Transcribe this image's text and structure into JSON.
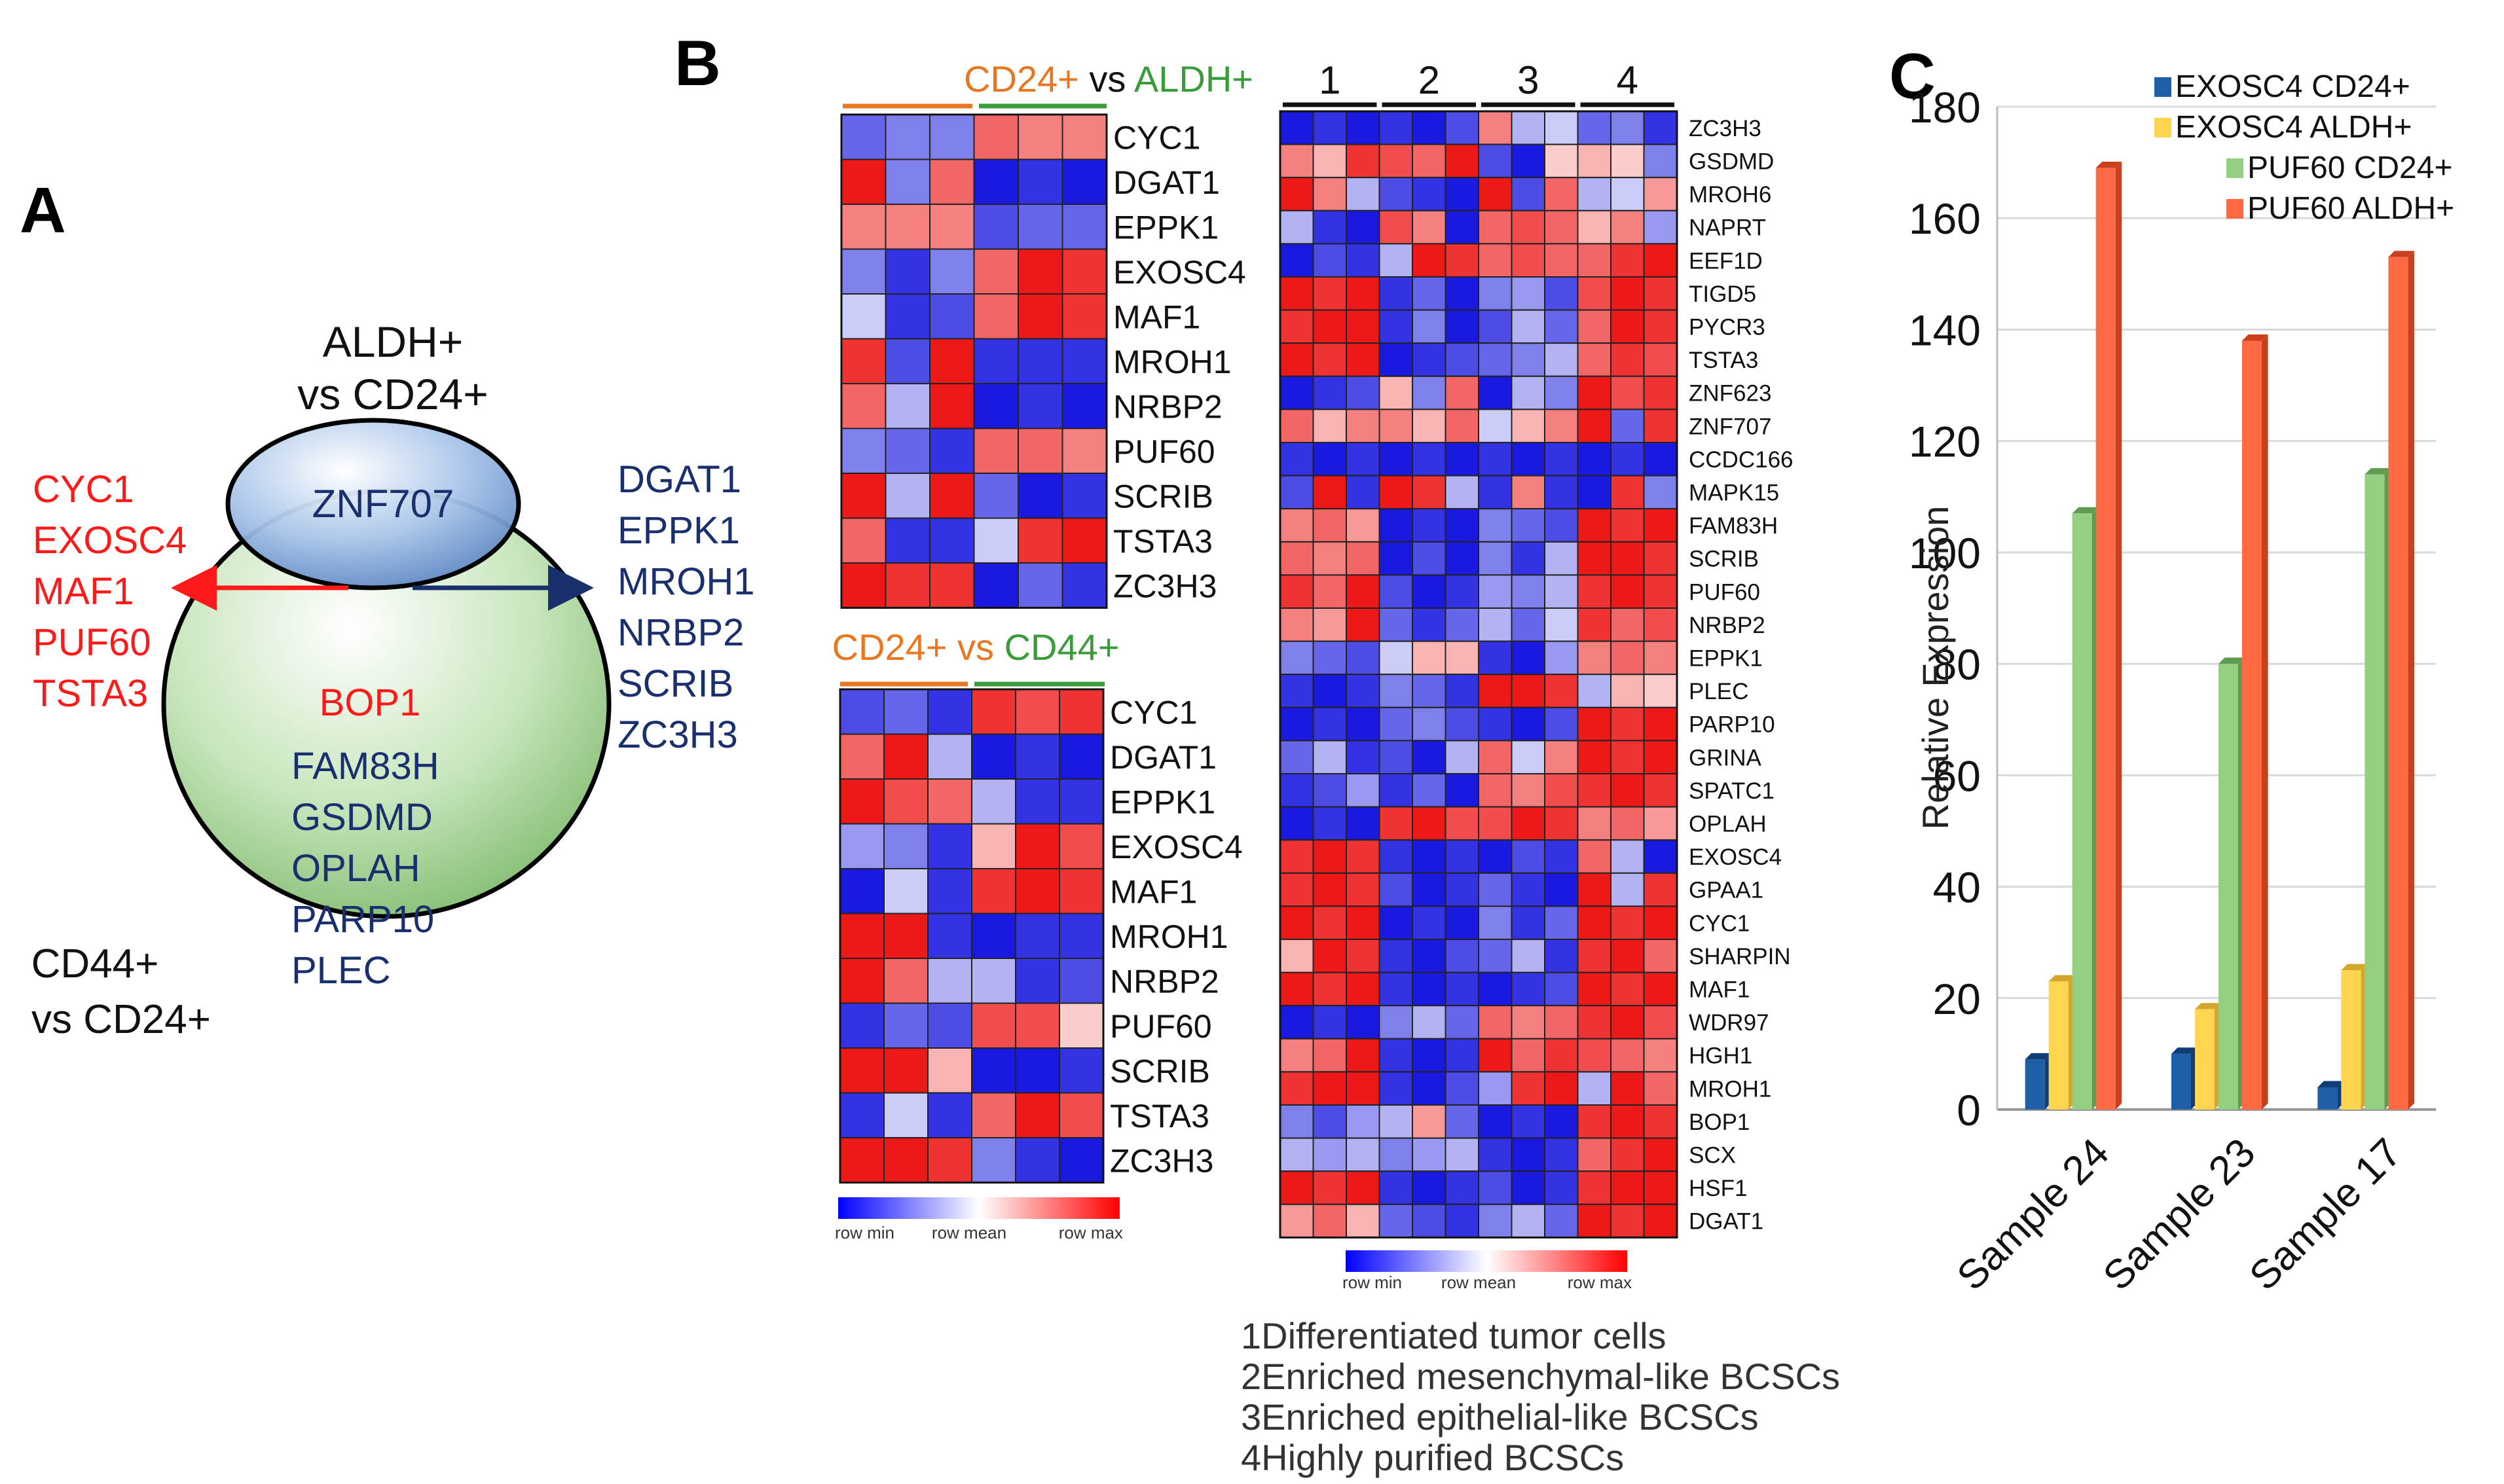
{
  "panel_labels": {
    "a": "A",
    "b": "B",
    "c": "C"
  },
  "panel_a": {
    "top_label_line1": "ALDH+",
    "top_label_line2": "vs CD24+",
    "bottom_label_line1": "CD44+",
    "bottom_label_line2": "vs CD24+",
    "top_ellipse_gene": "ZNF707",
    "overlap_gene": "BOP1",
    "bottom_ellipse_genes": [
      "FAM83H",
      "GSDMD",
      "OPLAH",
      "PARP10",
      "PLEC"
    ],
    "left_arrow_genes": [
      "CYC1",
      "EXOSC4",
      "MAF1",
      "PUF60",
      "TSTA3"
    ],
    "right_arrow_genes": [
      "DGAT1",
      "EPPK1",
      "MROH1",
      "NRBP2",
      "SCRIB",
      "ZC3H3"
    ],
    "colors": {
      "up": "#ff1a1a",
      "down": "#1a2f6e",
      "top_ellipse": "#8fb3e0",
      "bottom_ellipse": "#b8dba8"
    }
  },
  "heatmap1": {
    "title_a": "CD24+",
    "title_vs": " vs ",
    "title_b": "ALDH+",
    "title_a_color": "#e87722",
    "title_b_color": "#3a9b3a",
    "genes": [
      "CYC1",
      "DGAT1",
      "EPPK1",
      "EXOSC4",
      "MAF1",
      "MROH1",
      "NRBP2",
      "PUF60",
      "SCRIB",
      "TSTA3",
      "ZC3H3"
    ],
    "values": [
      [
        -0.6,
        -0.5,
        -0.5,
        0.6,
        0.5,
        0.5
      ],
      [
        0.9,
        -0.5,
        0.6,
        -0.9,
        -0.8,
        -0.9
      ],
      [
        0.5,
        0.5,
        0.5,
        -0.7,
        -0.6,
        -0.6
      ],
      [
        -0.5,
        -0.8,
        -0.5,
        0.6,
        0.9,
        0.8
      ],
      [
        -0.2,
        -0.8,
        -0.7,
        0.6,
        0.9,
        0.8
      ],
      [
        0.8,
        -0.7,
        0.9,
        -0.8,
        -0.8,
        -0.8
      ],
      [
        0.6,
        -0.3,
        0.9,
        -0.9,
        -0.8,
        -0.9
      ],
      [
        -0.5,
        -0.6,
        -0.8,
        0.6,
        0.6,
        0.5
      ],
      [
        0.9,
        -0.3,
        0.9,
        -0.6,
        -0.9,
        -0.8
      ],
      [
        0.6,
        -0.8,
        -0.8,
        -0.2,
        0.8,
        0.9
      ],
      [
        0.9,
        0.8,
        0.8,
        -0.9,
        -0.6,
        -0.8
      ]
    ],
    "legend": {
      "min": "row min",
      "mean": "row mean",
      "max": "row max"
    }
  },
  "heatmap2": {
    "title_a": "CD24+",
    "title_vs": " vs ",
    "title_b": "CD44+",
    "title_a_color": "#e87722",
    "title_b_color": "#3a9b3a",
    "genes": [
      "CYC1",
      "DGAT1",
      "EPPK1",
      "EXOSC4",
      "MAF1",
      "MROH1",
      "NRBP2",
      "PUF60",
      "SCRIB",
      "TSTA3",
      "ZC3H3"
    ],
    "values": [
      [
        -0.7,
        -0.6,
        -0.8,
        0.8,
        0.7,
        0.8
      ],
      [
        0.6,
        0.9,
        -0.3,
        -0.9,
        -0.8,
        -0.9
      ],
      [
        0.9,
        0.7,
        0.6,
        -0.3,
        -0.8,
        -0.8
      ],
      [
        -0.4,
        -0.5,
        -0.8,
        0.3,
        0.9,
        0.7
      ],
      [
        -0.9,
        -0.2,
        -0.8,
        0.8,
        0.9,
        0.8
      ],
      [
        0.9,
        0.9,
        -0.8,
        -0.9,
        -0.8,
        -0.8
      ],
      [
        0.9,
        0.6,
        -0.3,
        -0.3,
        -0.8,
        -0.7
      ],
      [
        -0.8,
        -0.6,
        -0.7,
        0.7,
        0.7,
        0.2
      ],
      [
        0.9,
        0.9,
        0.3,
        -0.9,
        -0.9,
        -0.8
      ],
      [
        -0.8,
        -0.2,
        -0.8,
        0.6,
        0.9,
        0.7
      ],
      [
        0.9,
        0.9,
        0.8,
        -0.5,
        -0.8,
        -0.9
      ]
    ],
    "legend": {
      "min": "row min",
      "mean": "row mean",
      "max": "row max"
    }
  },
  "heatmap3": {
    "group_labels": [
      "1",
      "2",
      "3",
      "4"
    ],
    "genes": [
      "ZC3H3",
      "GSDMD",
      "MROH6",
      "NAPRT",
      "EEF1D",
      "TIGD5",
      "PYCR3",
      "TSTA3",
      "ZNF623",
      "ZNF707",
      "CCDC166",
      "MAPK15",
      "FAM83H",
      "SCRIB",
      "PUF60",
      "NRBP2",
      "EPPK1",
      "PLEC",
      "PARP10",
      "GRINA",
      "SPATC1",
      "OPLAH",
      "EXOSC4",
      "GPAA1",
      "CYC1",
      "SHARPIN",
      "MAF1",
      "WDR97",
      "HGH1",
      "MROH1",
      "BOP1",
      "SCX",
      "HSF1",
      "DGAT1"
    ],
    "values": [
      [
        -0.9,
        -0.8,
        -0.9,
        -0.8,
        -0.9,
        -0.7,
        0.5,
        -0.3,
        -0.2,
        -0.6,
        -0.5,
        -0.8
      ],
      [
        0.5,
        0.3,
        0.8,
        0.7,
        0.6,
        0.9,
        -0.7,
        -0.9,
        0.2,
        0.3,
        0.2,
        -0.5
      ],
      [
        0.9,
        0.5,
        -0.3,
        -0.7,
        -0.8,
        -0.9,
        0.9,
        -0.7,
        0.6,
        -0.3,
        -0.2,
        0.4
      ],
      [
        -0.3,
        -0.8,
        -0.9,
        0.7,
        0.5,
        -0.9,
        0.6,
        0.7,
        0.6,
        0.3,
        0.5,
        -0.4
      ],
      [
        -0.9,
        -0.7,
        -0.8,
        -0.3,
        0.9,
        0.8,
        0.6,
        0.7,
        0.6,
        0.6,
        0.8,
        0.9
      ],
      [
        0.9,
        0.8,
        0.9,
        -0.8,
        -0.6,
        -0.9,
        -0.5,
        -0.4,
        -0.7,
        0.7,
        0.9,
        0.8
      ],
      [
        0.8,
        0.9,
        0.9,
        -0.8,
        -0.5,
        -0.9,
        -0.7,
        -0.3,
        -0.6,
        0.6,
        0.9,
        0.8
      ],
      [
        0.9,
        0.8,
        0.9,
        -0.9,
        -0.8,
        -0.7,
        -0.6,
        -0.5,
        -0.3,
        0.6,
        0.8,
        0.7
      ],
      [
        -0.9,
        -0.8,
        -0.7,
        0.3,
        -0.5,
        0.6,
        -0.9,
        -0.3,
        -0.5,
        0.9,
        0.7,
        0.8
      ],
      [
        0.6,
        0.3,
        0.5,
        0.5,
        0.3,
        0.6,
        -0.2,
        0.3,
        0.5,
        0.9,
        -0.6,
        0.8
      ],
      [
        -0.8,
        -0.9,
        -0.8,
        -0.9,
        -0.8,
        -0.9,
        -0.8,
        -0.9,
        -0.8,
        -0.9,
        -0.8,
        -0.9
      ],
      [
        -0.7,
        0.9,
        -0.8,
        0.9,
        0.8,
        -0.3,
        -0.8,
        0.5,
        -0.8,
        -0.9,
        0.8,
        -0.5
      ],
      [
        0.5,
        0.6,
        0.4,
        -0.9,
        -0.8,
        -0.9,
        -0.5,
        -0.6,
        -0.7,
        0.9,
        0.8,
        0.9
      ],
      [
        0.6,
        0.5,
        0.6,
        -0.9,
        -0.7,
        -0.9,
        -0.5,
        -0.8,
        -0.3,
        0.9,
        0.9,
        0.8
      ],
      [
        0.8,
        0.6,
        0.9,
        -0.7,
        -0.9,
        -0.8,
        -0.4,
        -0.5,
        -0.3,
        0.8,
        0.9,
        0.8
      ],
      [
        0.5,
        0.4,
        0.9,
        -0.6,
        -0.8,
        -0.6,
        -0.3,
        -0.6,
        -0.2,
        0.8,
        0.6,
        0.7
      ],
      [
        -0.5,
        -0.6,
        -0.7,
        -0.2,
        0.3,
        0.3,
        -0.8,
        -0.9,
        -0.4,
        0.5,
        0.6,
        0.5
      ],
      [
        -0.8,
        -0.9,
        -0.8,
        -0.5,
        -0.6,
        -0.8,
        0.9,
        0.9,
        0.8,
        -0.3,
        0.3,
        0.2
      ],
      [
        -0.9,
        -0.8,
        -0.9,
        -0.6,
        -0.5,
        -0.7,
        -0.8,
        -0.9,
        -0.7,
        0.9,
        0.8,
        0.9
      ],
      [
        -0.6,
        -0.3,
        -0.8,
        -0.7,
        -0.9,
        -0.3,
        0.6,
        -0.2,
        0.5,
        0.9,
        0.8,
        0.9
      ],
      [
        -0.8,
        -0.7,
        -0.4,
        -0.8,
        -0.6,
        -0.9,
        0.6,
        0.5,
        0.7,
        0.8,
        0.9,
        0.8
      ],
      [
        -0.9,
        -0.8,
        -0.9,
        0.8,
        0.9,
        0.7,
        0.7,
        0.9,
        0.8,
        0.5,
        0.6,
        0.4
      ],
      [
        0.8,
        0.9,
        0.8,
        -0.8,
        -0.9,
        -0.8,
        -0.9,
        -0.7,
        -0.8,
        0.6,
        -0.3,
        -0.9
      ],
      [
        0.8,
        0.9,
        0.8,
        -0.7,
        -0.9,
        -0.8,
        -0.6,
        -0.8,
        -0.9,
        0.9,
        -0.3,
        0.8
      ],
      [
        0.9,
        0.8,
        0.9,
        -0.9,
        -0.8,
        -0.9,
        -0.5,
        -0.8,
        -0.6,
        0.9,
        0.8,
        0.9
      ],
      [
        0.3,
        0.9,
        0.8,
        -0.8,
        -0.9,
        -0.7,
        -0.6,
        -0.3,
        -0.8,
        0.8,
        0.9,
        0.6
      ],
      [
        0.9,
        0.8,
        0.9,
        -0.8,
        -0.9,
        -0.8,
        -0.9,
        -0.8,
        -0.7,
        0.9,
        0.8,
        0.9
      ],
      [
        -0.9,
        -0.8,
        -0.9,
        -0.5,
        -0.3,
        -0.6,
        0.6,
        0.5,
        0.6,
        0.8,
        0.9,
        0.7
      ],
      [
        0.5,
        0.6,
        0.9,
        -0.8,
        -0.9,
        -0.8,
        0.9,
        0.6,
        0.8,
        0.7,
        0.6,
        0.5
      ],
      [
        0.8,
        0.9,
        0.9,
        -0.8,
        -0.9,
        -0.7,
        -0.4,
        0.8,
        0.9,
        -0.3,
        0.9,
        0.6
      ],
      [
        -0.5,
        -0.7,
        -0.4,
        -0.3,
        0.4,
        -0.6,
        -0.9,
        -0.8,
        -0.9,
        0.8,
        0.9,
        0.8
      ],
      [
        -0.3,
        -0.4,
        -0.3,
        -0.5,
        -0.4,
        -0.3,
        -0.8,
        -0.9,
        -0.8,
        0.6,
        0.8,
        0.9
      ],
      [
        0.9,
        0.8,
        0.9,
        -0.8,
        -0.9,
        -0.8,
        -0.7,
        -0.9,
        -0.8,
        0.8,
        0.9,
        0.9
      ],
      [
        0.4,
        0.6,
        0.3,
        -0.6,
        -0.7,
        -0.8,
        -0.5,
        -0.3,
        -0.6,
        0.9,
        0.8,
        0.9
      ]
    ],
    "legend": {
      "min": "row min",
      "mean": "row mean",
      "max": "row max"
    },
    "key": [
      {
        "num": "1",
        "text": "Differentiated tumor cells"
      },
      {
        "num": "2",
        "text": "Enriched mesenchymal-like BCSCs"
      },
      {
        "num": "3",
        "text": "Enriched epithelial-like BCSCs"
      },
      {
        "num": "4",
        "text": "Highly purified BCSCs"
      }
    ]
  },
  "chart_data": {
    "type": "bar",
    "categories": [
      "Sample 24",
      "Sample 23",
      "Sample 17"
    ],
    "series": [
      {
        "name": "EXOSC4 CD24+",
        "values": [
          9,
          10,
          4
        ],
        "color": "#1f5fa8",
        "side": "#0f3d75"
      },
      {
        "name": "EXOSC4 ALDH+",
        "values": [
          23,
          18,
          25
        ],
        "color": "#ffd54f",
        "side": "#d4a72c"
      },
      {
        "name": "PUF60 CD24+",
        "values": [
          107,
          80,
          114
        ],
        "color": "#92cf80",
        "side": "#5e9a4f"
      },
      {
        "name": "PUF60 ALDH+",
        "values": [
          169,
          138,
          153
        ],
        "color": "#ff6a45",
        "side": "#c8401e"
      }
    ],
    "y_ticks": [
      "0",
      "20",
      "40",
      "60",
      "80",
      "100",
      "120",
      "140",
      "160",
      "180"
    ],
    "ylim": [
      0,
      180
    ],
    "ylabel": "Relative Expression",
    "xlabel": "",
    "title": "",
    "legend_position": "top-right",
    "grid": true
  }
}
